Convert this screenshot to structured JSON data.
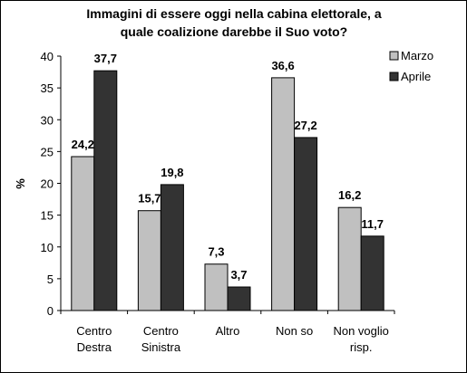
{
  "chart_data": {
    "type": "bar",
    "title_lines": [
      "Immagini di essere oggi nella cabina elettorale, a",
      "quale coalizione darebbe il Suo voto?"
    ],
    "ylabel": "%",
    "xlabel": "",
    "ylim": [
      0,
      40
    ],
    "yticks": [
      0,
      5,
      10,
      15,
      20,
      25,
      30,
      35,
      40
    ],
    "grid": false,
    "legend_position": "top-right",
    "categories": [
      [
        "Centro",
        "Destra"
      ],
      [
        "Centro",
        "Sinistra"
      ],
      [
        "Altro"
      ],
      [
        "Non so"
      ],
      [
        "Non voglio",
        "risp."
      ]
    ],
    "series": [
      {
        "name": "Marzo",
        "color": "#c0c0c0",
        "values": [
          24.2,
          15.7,
          7.3,
          36.6,
          16.2
        ],
        "labels": [
          "24,2",
          "15,7",
          "7,3",
          "36,6",
          "16,2"
        ]
      },
      {
        "name": "Aprile",
        "color": "#333333",
        "values": [
          37.7,
          19.8,
          3.7,
          27.2,
          11.7
        ],
        "labels": [
          "37,7",
          "19,8",
          "3,7",
          "27,2",
          "11,7"
        ]
      }
    ]
  }
}
